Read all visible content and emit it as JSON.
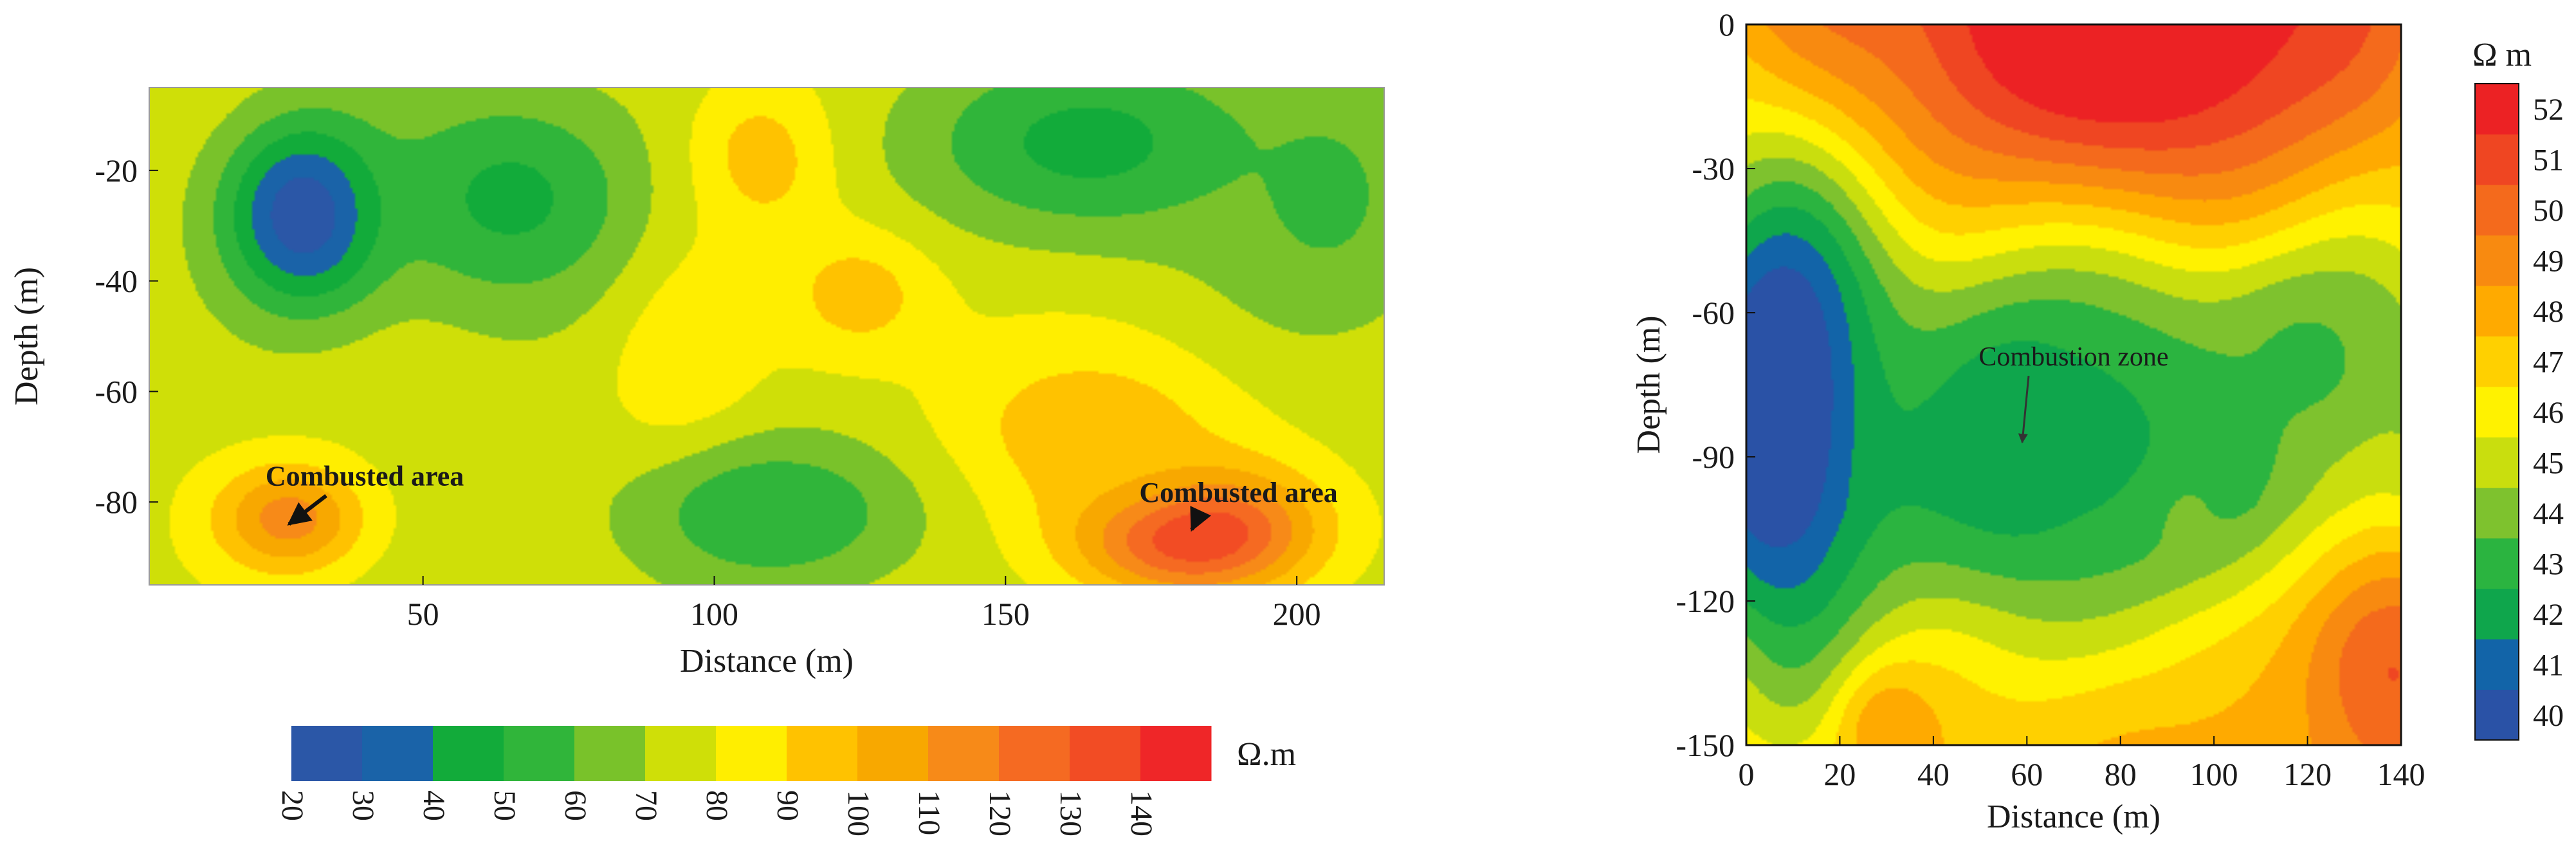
{
  "chart_data": [
    {
      "type": "heatmap",
      "subtype": "filled-contour",
      "xlabel": "Distance (m)",
      "ylabel": "Depth (m)",
      "xlim": [
        3,
        215
      ],
      "ylim": [
        -95,
        -5
      ],
      "xticks": [
        50,
        100,
        150,
        200
      ],
      "yticks": [
        -20,
        -40,
        -60,
        -80
      ],
      "colorbar": {
        "orientation": "horizontal",
        "unit": "Ω.m",
        "ticks": [
          20,
          30,
          40,
          50,
          60,
          70,
          80,
          90,
          100,
          110,
          120,
          130,
          140
        ],
        "colors": [
          "#2b57a7",
          "#1a63a8",
          "#12ab3a",
          "#30b53a",
          "#79c22a",
          "#cfdf08",
          "#ffee00",
          "#ffc200",
          "#f8a800",
          "#f78a18",
          "#f56a22",
          "#f24c24",
          "#ef2628"
        ]
      },
      "annotations": [
        {
          "text": "Combusted area",
          "label_at": [
            40,
            -77
          ],
          "arrow_to": [
            27,
            -84
          ]
        },
        {
          "text": "Combusted area",
          "label_at": [
            190,
            -80
          ],
          "arrow_to": [
            182,
            -85
          ]
        }
      ],
      "anomalies": [
        {
          "x": 182,
          "y": -85,
          "value": 140,
          "sx": 14,
          "sy": 8
        },
        {
          "x": 27,
          "y": -83,
          "value": 108,
          "sx": 9,
          "sy": 7
        },
        {
          "x": 165,
          "y": -68,
          "value": 92,
          "sx": 18,
          "sy": 12
        },
        {
          "x": 108,
          "y": -18,
          "value": 92,
          "sx": 9,
          "sy": 10
        },
        {
          "x": 125,
          "y": -42,
          "value": 90,
          "sx": 10,
          "sy": 9
        },
        {
          "x": 95,
          "y": -55,
          "value": 84,
          "sx": 9,
          "sy": 18
        },
        {
          "x": 30,
          "y": -28,
          "value": 20,
          "sx": 10,
          "sy": 12
        },
        {
          "x": 165,
          "y": -15,
          "value": 44,
          "sx": 22,
          "sy": 12
        },
        {
          "x": 110,
          "y": -82,
          "value": 48,
          "sx": 18,
          "sy": 10
        },
        {
          "x": 65,
          "y": -25,
          "value": 45,
          "sx": 16,
          "sy": 14
        },
        {
          "x": 205,
          "y": -25,
          "value": 55,
          "sx": 14,
          "sy": 18
        }
      ],
      "background_value": 72
    },
    {
      "type": "heatmap",
      "subtype": "filled-contour",
      "xlabel": "Distance (m)",
      "ylabel": "Depth (m)",
      "xlim": [
        0,
        140
      ],
      "ylim": [
        -150,
        0
      ],
      "xticks": [
        0,
        20,
        40,
        60,
        80,
        100,
        120,
        140
      ],
      "yticks": [
        0,
        -30,
        -60,
        -90,
        -120,
        -150
      ],
      "colorbar": {
        "orientation": "vertical",
        "unit": "Ω m",
        "ticks": [
          40,
          41,
          42,
          43,
          44,
          45,
          46,
          47,
          48,
          49,
          50,
          51,
          52
        ],
        "colors": [
          "#2a52a6",
          "#1264a8",
          "#0fa64c",
          "#2bb440",
          "#7ec22e",
          "#c9de0e",
          "#fff200",
          "#ffd000",
          "#ffaa00",
          "#f88a10",
          "#f46a1c",
          "#ef4622",
          "#ec2224"
        ]
      },
      "annotations": [
        {
          "text": "Combustion zone",
          "label_at": [
            70,
            -71
          ],
          "arrow_to": [
            59,
            -87
          ]
        }
      ],
      "anomalies": [
        {
          "x": 80,
          "y": 0,
          "value": 53,
          "sx": 40,
          "sy": 35
        },
        {
          "x": 135,
          "y": -135,
          "value": 51,
          "sx": 18,
          "sy": 22
        },
        {
          "x": 85,
          "y": -150,
          "value": 48,
          "sx": 30,
          "sy": 20
        },
        {
          "x": 30,
          "y": -145,
          "value": 49,
          "sx": 8,
          "sy": 10
        },
        {
          "x": 92,
          "y": -100,
          "value": 47,
          "sx": 6,
          "sy": 7
        },
        {
          "x": 8,
          "y": -80,
          "value": 38.5,
          "sx": 14,
          "sy": 32
        },
        {
          "x": 58,
          "y": -85,
          "value": 39.5,
          "sx": 10,
          "sy": 13
        },
        {
          "x": 70,
          "y": -85,
          "value": 42.5,
          "sx": 35,
          "sy": 30
        },
        {
          "x": 120,
          "y": -70,
          "value": 43.5,
          "sx": 14,
          "sy": 14
        }
      ],
      "background_value": 45.2,
      "depth_gradient": [
        {
          "y": 0,
          "value": 47.5
        },
        {
          "y": -30,
          "value": 46.0
        },
        {
          "y": -55,
          "value": 44.8
        },
        {
          "y": -100,
          "value": 44.2
        },
        {
          "y": -125,
          "value": 45.8
        },
        {
          "y": -150,
          "value": 46.5
        }
      ]
    }
  ]
}
